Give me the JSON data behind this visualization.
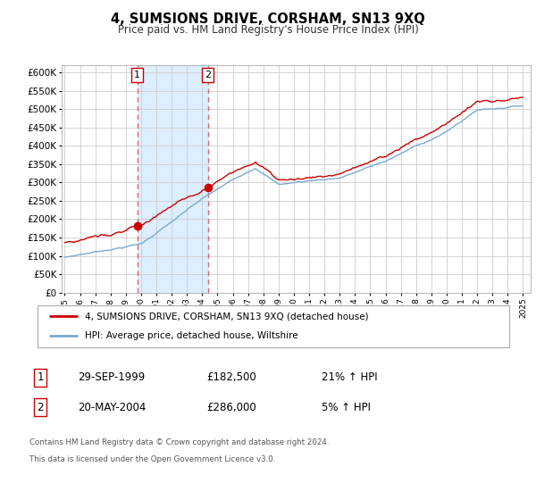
{
  "title": "4, SUMSIONS DRIVE, CORSHAM, SN13 9XQ",
  "subtitle": "Price paid vs. HM Land Registry's House Price Index (HPI)",
  "ylim": [
    0,
    620000
  ],
  "yticks": [
    0,
    50000,
    100000,
    150000,
    200000,
    250000,
    300000,
    350000,
    400000,
    450000,
    500000,
    550000,
    600000
  ],
  "ytick_labels": [
    "£0",
    "£50K",
    "£100K",
    "£150K",
    "£200K",
    "£250K",
    "£300K",
    "£350K",
    "£400K",
    "£450K",
    "£500K",
    "£550K",
    "£600K"
  ],
  "xlim_start": 1994.8,
  "xlim_end": 2025.5,
  "sale1_x": 1999.747,
  "sale1_y": 182500,
  "sale2_x": 2004.38,
  "sale2_y": 286000,
  "sale1_date": "29-SEP-1999",
  "sale1_price": "£182,500",
  "sale1_hpi": "21% ↑ HPI",
  "sale2_date": "20-MAY-2004",
  "sale2_price": "£286,000",
  "sale2_hpi": "5% ↑ HPI",
  "property_color": "#cc0000",
  "hpi_color": "#7aaad0",
  "shaded_color": "#ddeeff",
  "legend_property": "4, SUMSIONS DRIVE, CORSHAM, SN13 9XQ (detached house)",
  "legend_hpi": "HPI: Average price, detached house, Wiltshire",
  "footer1": "Contains HM Land Registry data © Crown copyright and database right 2024.",
  "footer2": "This data is licensed under the Open Government Licence v3.0.",
  "background_color": "#ffffff",
  "grid_color": "#cccccc"
}
